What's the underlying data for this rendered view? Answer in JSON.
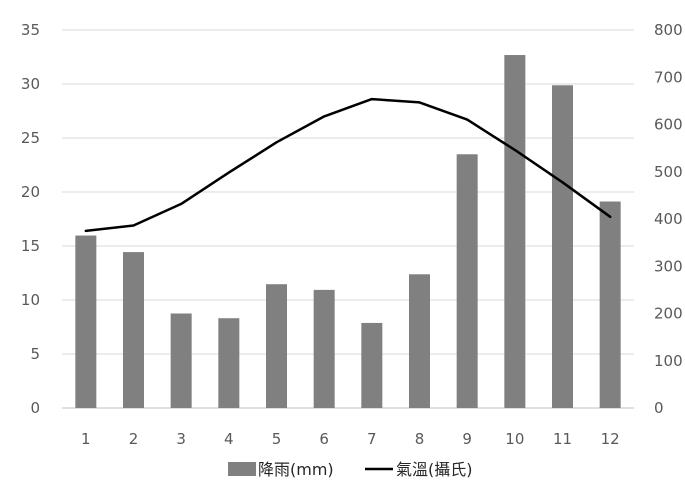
{
  "chart_data": {
    "type": "bar+line",
    "categories": [
      "1",
      "2",
      "3",
      "4",
      "5",
      "6",
      "7",
      "8",
      "9",
      "10",
      "11",
      "12"
    ],
    "series": [
      {
        "name": "降雨(mm)",
        "type": "bar",
        "axis": "right",
        "color": "#808080",
        "values": [
          365,
          330,
          200,
          190,
          262,
          250,
          180,
          283,
          537,
          747,
          683,
          437
        ]
      },
      {
        "name": "氣溫(攝氏)",
        "type": "line",
        "axis": "left",
        "color": "#000000",
        "values": [
          16.4,
          16.9,
          18.9,
          21.8,
          24.6,
          27.0,
          28.6,
          28.3,
          26.7,
          23.9,
          20.9,
          17.7
        ]
      }
    ],
    "y_left": {
      "ylim": [
        0,
        35
      ],
      "ticks": [
        "0",
        "5",
        "10",
        "15",
        "20",
        "25",
        "30",
        "35"
      ]
    },
    "y_right": {
      "ylim": [
        0,
        800
      ],
      "ticks": [
        "0",
        "100",
        "200",
        "300",
        "400",
        "500",
        "600",
        "700",
        "800"
      ]
    },
    "grid": true,
    "legend": "bottom"
  }
}
